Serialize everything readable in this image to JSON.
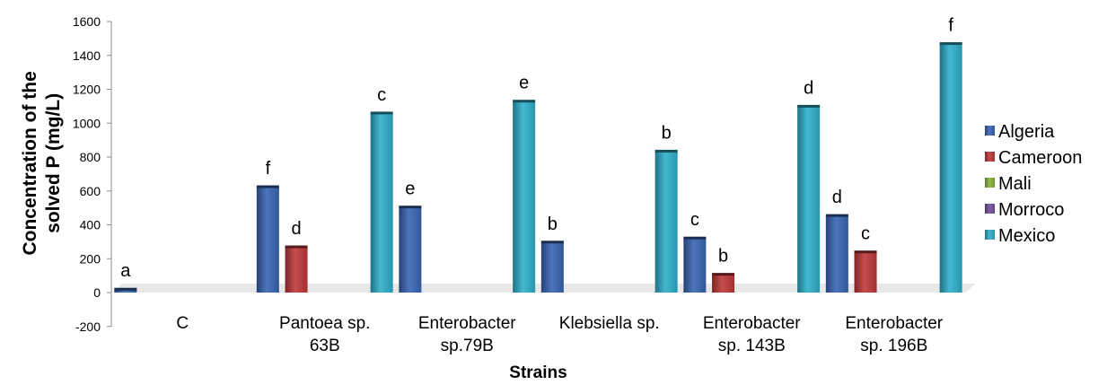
{
  "chart_data": {
    "type": "bar",
    "xlabel": "Strains",
    "ylabel": [
      "Concentration of the",
      "solved P (mg/L)"
    ],
    "ylim": [
      -200,
      1600
    ],
    "yticks": [
      -200,
      0,
      200,
      400,
      600,
      800,
      1000,
      1200,
      1400,
      1600
    ],
    "grid": false,
    "legend_position": "right",
    "categories": [
      [
        "C"
      ],
      [
        "Pantoea sp.",
        "63B"
      ],
      [
        "Enterobacter",
        "sp.79B"
      ],
      [
        "Klebsiella sp."
      ],
      [
        "Enterobacter",
        "sp. 143B"
      ],
      [
        "Enterobacter",
        "sp. 196B"
      ]
    ],
    "series": [
      {
        "name": "Algeria",
        "color": "#3a66b5",
        "values": [
          20,
          625,
          505,
          298,
          322,
          455
        ],
        "labels": [
          "a",
          "f",
          "e",
          "b",
          "c",
          "d"
        ]
      },
      {
        "name": "Cameroon",
        "color": "#c0393a",
        "values": [
          0,
          270,
          0,
          0,
          108,
          240
        ],
        "labels": [
          "",
          "d",
          "",
          "",
          "b",
          "c"
        ]
      },
      {
        "name": "Mali",
        "color": "#8ab23c",
        "values": [
          0,
          0,
          0,
          0,
          0,
          0
        ],
        "labels": [
          "",
          "",
          "",
          "",
          "",
          ""
        ]
      },
      {
        "name": "Morroco",
        "color": "#7351a0",
        "values": [
          0,
          0,
          0,
          0,
          0,
          0
        ],
        "labels": [
          "",
          "",
          "",
          "",
          "",
          ""
        ]
      },
      {
        "name": "Mexico",
        "color": "#2fb0cc",
        "values": [
          0,
          1060,
          1130,
          835,
          1100,
          1470
        ],
        "labels": [
          "",
          "c",
          "e",
          "b",
          "d",
          "f"
        ]
      }
    ]
  }
}
